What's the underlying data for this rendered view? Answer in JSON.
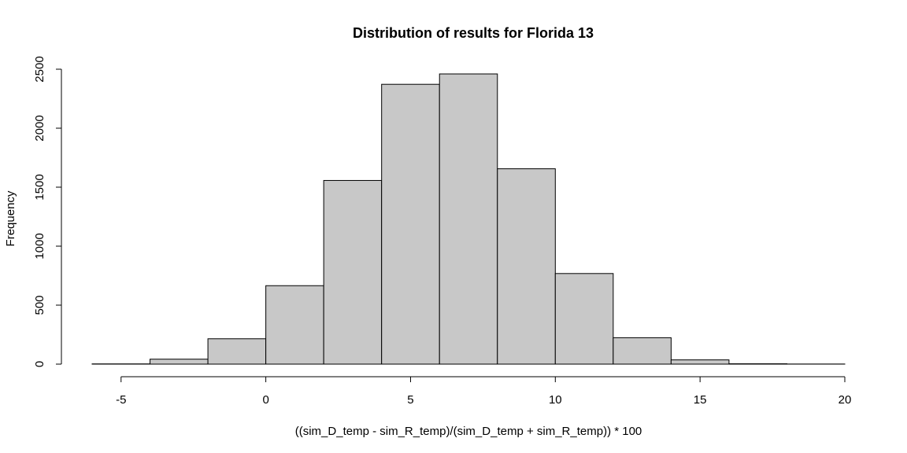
{
  "chart_data": {
    "type": "bar",
    "title": "Distribution of results for Florida 13",
    "xlabel": "((sim_D_temp - sim_R_temp)/(sim_D_temp + sim_R_temp)) * 100",
    "ylabel": "Frequency",
    "bar_fill": "#c8c8c8",
    "bar_stroke": "#000000",
    "xlim": [
      -6,
      20
    ],
    "ylim": [
      0,
      2500
    ],
    "x_ticks": [
      -5,
      0,
      5,
      10,
      15,
      20
    ],
    "y_ticks": [
      0,
      500,
      1000,
      1500,
      2000,
      2500
    ],
    "bins": [
      {
        "x0": -6,
        "x1": -4,
        "count": 2
      },
      {
        "x0": -4,
        "x1": -2,
        "count": 42
      },
      {
        "x0": -2,
        "x1": 0,
        "count": 215
      },
      {
        "x0": 0,
        "x1": 2,
        "count": 665
      },
      {
        "x0": 2,
        "x1": 4,
        "count": 1557
      },
      {
        "x0": 4,
        "x1": 6,
        "count": 2372
      },
      {
        "x0": 6,
        "x1": 8,
        "count": 2460
      },
      {
        "x0": 8,
        "x1": 10,
        "count": 1656
      },
      {
        "x0": 10,
        "x1": 12,
        "count": 768
      },
      {
        "x0": 12,
        "x1": 14,
        "count": 224
      },
      {
        "x0": 14,
        "x1": 16,
        "count": 36
      },
      {
        "x0": 16,
        "x1": 18,
        "count": 3
      },
      {
        "x0": 18,
        "x1": 20,
        "count": 1
      }
    ],
    "grid": false,
    "legend": "none"
  }
}
